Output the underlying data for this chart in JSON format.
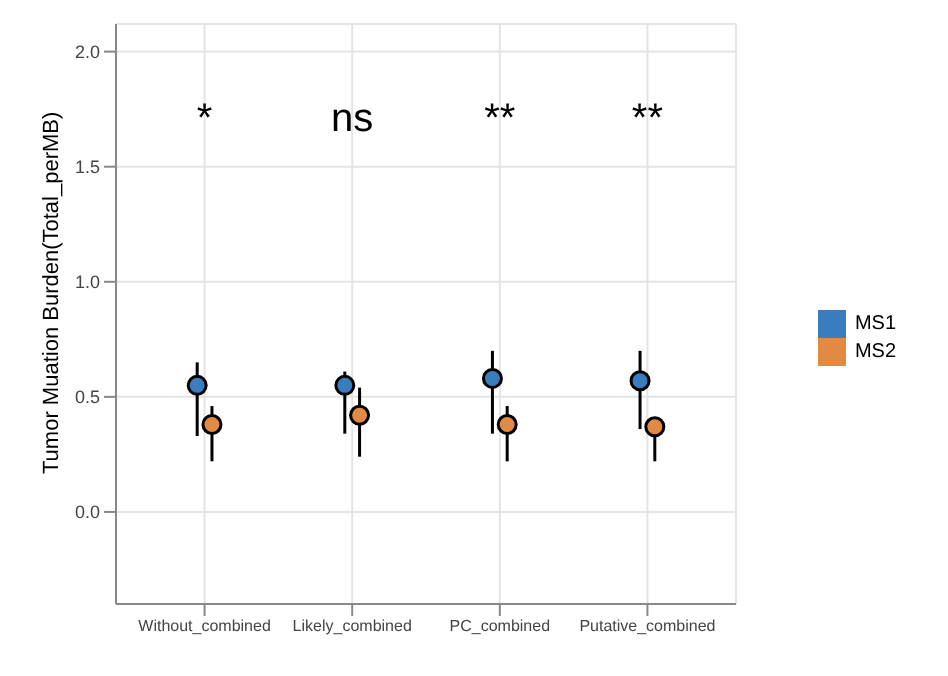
{
  "chart_data": {
    "type": "scatter",
    "ylabel": "Tumor Muation Burden(Total_perMB)",
    "categories": [
      "Without_combined",
      "Likely_combined",
      "PC_combined",
      "Putative_combined"
    ],
    "series": [
      {
        "name": "MS1",
        "color": "#3a7dbf",
        "values": [
          0.55,
          0.55,
          0.58,
          0.57
        ],
        "errors": [
          [
            0.33,
            0.65
          ],
          [
            0.34,
            0.61
          ],
          [
            0.34,
            0.7
          ],
          [
            0.36,
            0.7
          ]
        ]
      },
      {
        "name": "MS2",
        "color": "#e08a44",
        "values": [
          0.38,
          0.42,
          0.38,
          0.37
        ],
        "errors": [
          [
            0.22,
            0.46
          ],
          [
            0.24,
            0.54
          ],
          [
            0.22,
            0.46
          ],
          [
            0.22,
            0.41
          ]
        ]
      }
    ],
    "ylim": [
      -0.4,
      2.12
    ],
    "yticks": [
      {
        "value": 0,
        "label": "0.0"
      },
      {
        "value": 0.5,
        "label": "0.5"
      },
      {
        "value": 1,
        "label": "1.0"
      },
      {
        "value": 1.5,
        "label": "1.5"
      },
      {
        "value": 2,
        "label": "2.0"
      }
    ],
    "annotations": [
      "*",
      "ns",
      "**",
      "**"
    ],
    "grid": true,
    "legend": "right",
    "marker": "circle"
  }
}
